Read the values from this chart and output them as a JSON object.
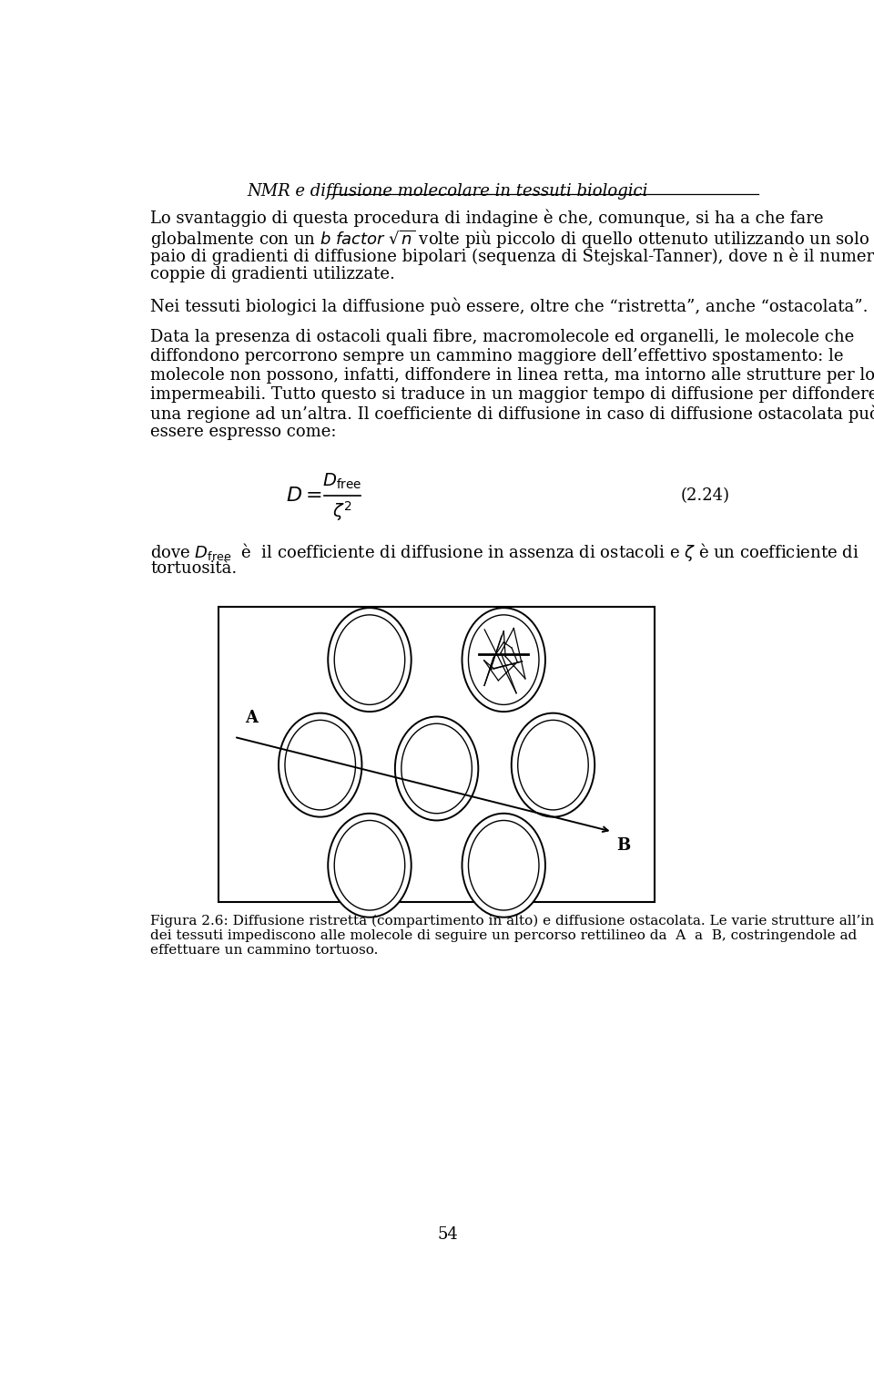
{
  "title": "NMR e diffusione molecolare in tessuti biologici",
  "bg_color": "#ffffff",
  "text_color": "#000000",
  "page_number": "54",
  "formula_number": "(2.24)",
  "p1_lines": [
    "Lo svantaggio di questa procedura di indagine è che, comunque, si ha a che fare",
    "globalmente con un $b$ $\\mathit{factor}$ $\\sqrt{n}$ volte più piccolo di quello ottenuto utilizzando un solo",
    "paio di gradienti di diffusione bipolari (sequenza di Stejskal-Tanner), dove n è il numero di",
    "coppie di gradienti utilizzate."
  ],
  "p2_line": "Nei tessuti biologici la diffusione può essere, oltre che “ristretta”, anche “ostacolata”.",
  "p3_lines": [
    "Data la presenza di ostacoli quali fibre, macromolecole ed organelli, le molecole che",
    "diffondono percorrono sempre un cammino maggiore dell’effettivo spostamento: le",
    "molecole non possono, infatti, diffondere in linea retta, ma intorno alle strutture per loro",
    "impermeabili. Tutto questo si traduce in un maggior tempo di diffusione per diffondere da",
    "una regione ad un’altra. Il coefficiente di diffusione in caso di diffusione ostacolata può",
    "essere espresso come:"
  ],
  "cap_lines": [
    "dove $D_{\\mathrm{free}}$  è  il coefficiente di diffusione in assenza di ostacoli e $\\zeta$ è un coefficiente di",
    "tortuosità."
  ],
  "fig_cap_lines": [
    "Figura 2.6: Diffusione ristretta (compartimento in alto) e diffusione ostacolata. Le varie strutture all’interno",
    "dei tessuti impediscono alle molecole di seguire un percorso rettilineo da  A  a  B, costringendole ad",
    "effettuare un cammino tortuoso."
  ]
}
